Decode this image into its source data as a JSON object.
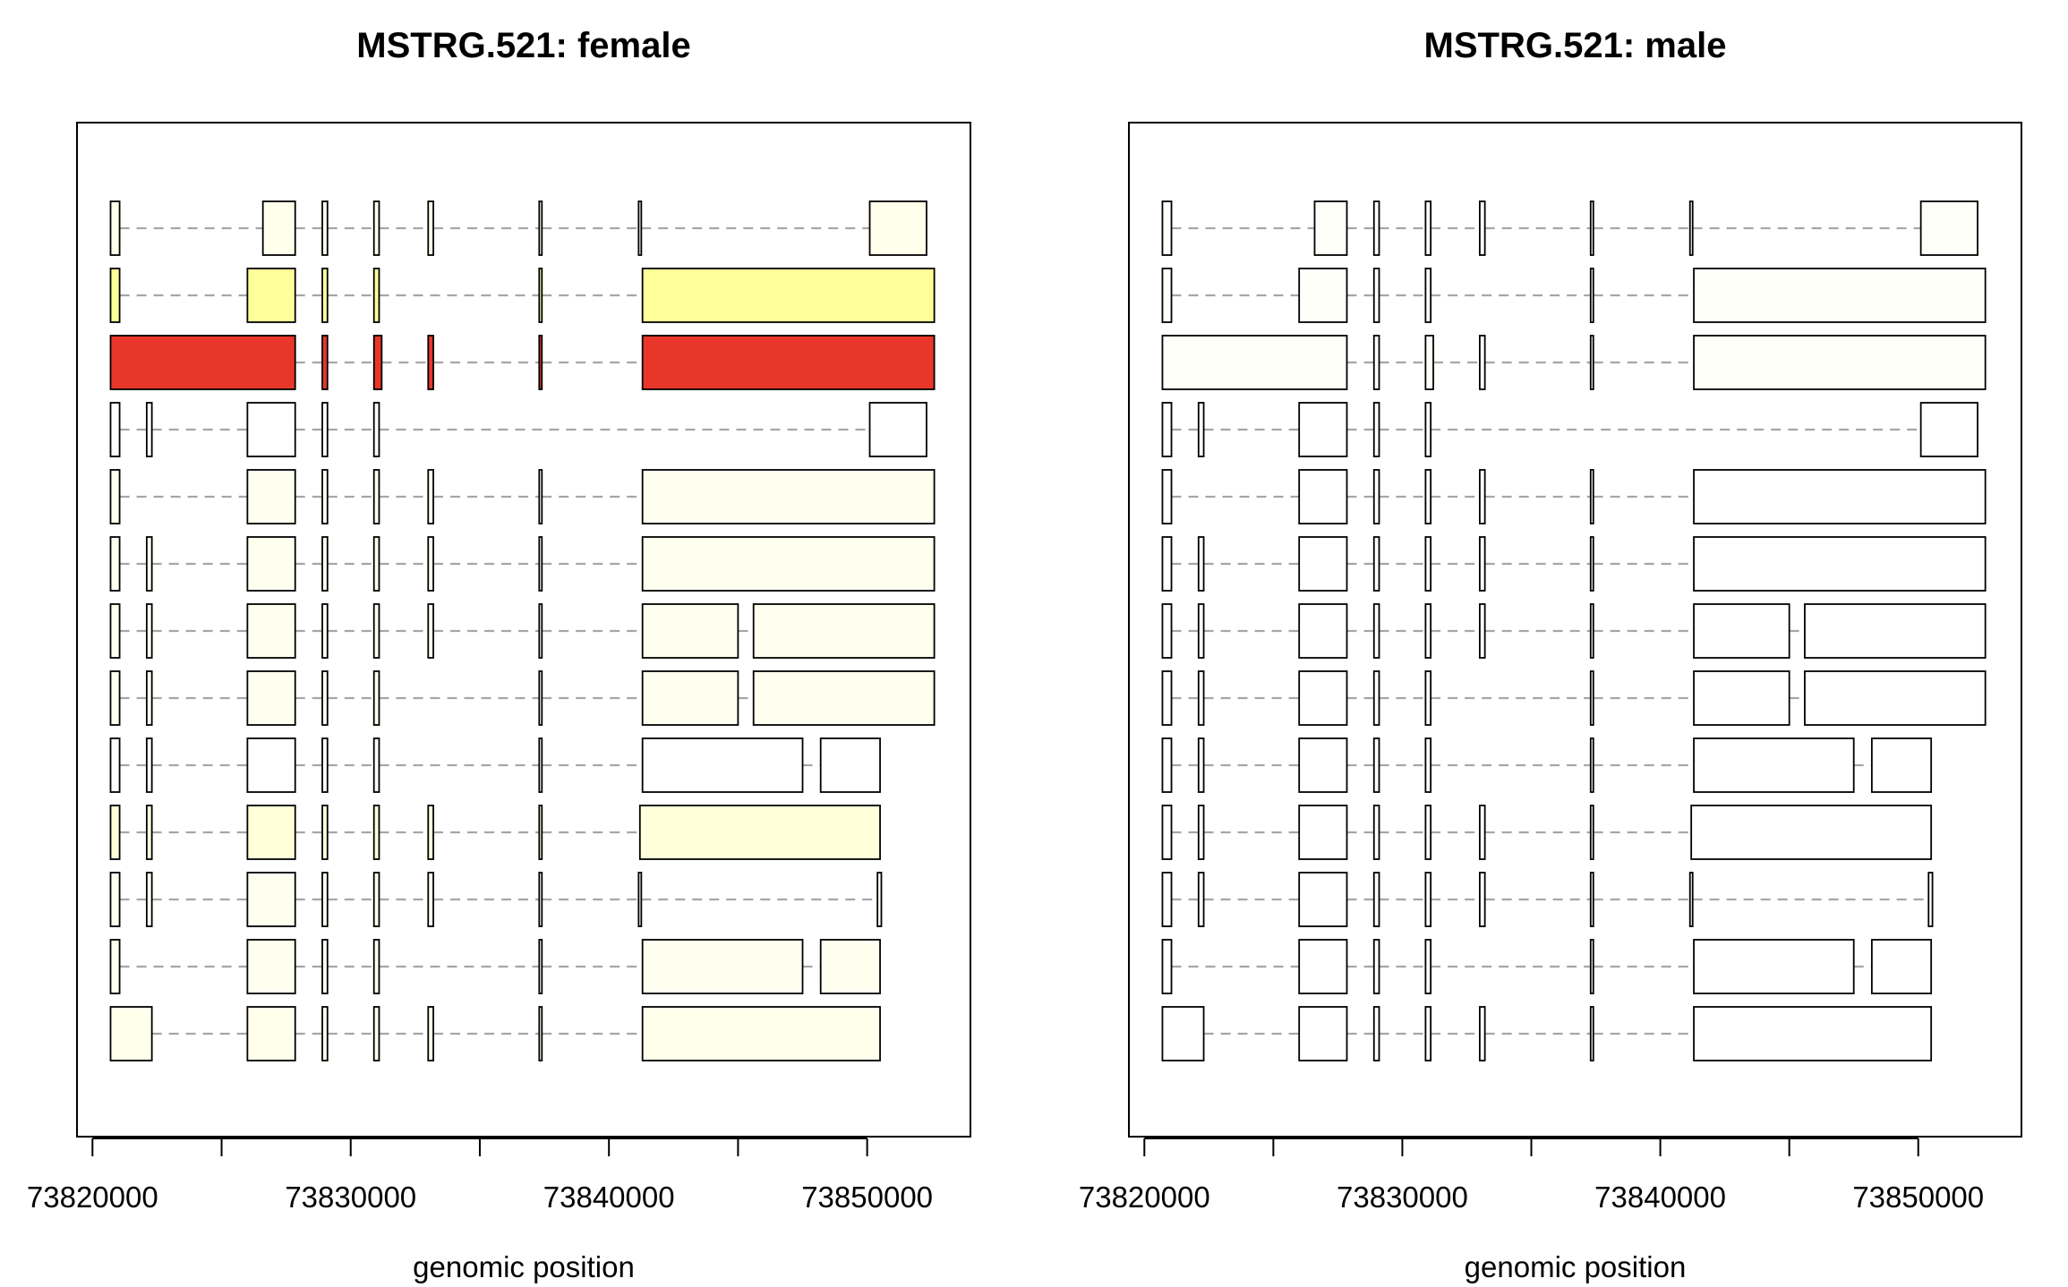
{
  "chart_data": [
    {
      "type": "transcript-structure",
      "title": "MSTRG.521: female",
      "xlabel": "genomic position",
      "ylabel": "",
      "xticks": [
        73820000,
        73825000,
        73830000,
        73835000,
        73840000,
        73845000,
        73850000
      ],
      "xtick_labels": [
        "73820000",
        "73830000",
        "73840000",
        "73850000"
      ],
      "xlim": [
        73819400,
        73854000
      ],
      "transcripts": [
        {
          "color": "#FFFFEB",
          "exons": [
            [
              73820700,
              73821050
            ],
            [
              73826600,
              73827850
            ],
            [
              73828900,
              73829100
            ],
            [
              73830900,
              73831100
            ],
            [
              73833000,
              73833200
            ],
            [
              73837300,
              73837400
            ],
            [
              73841150,
              73841250
            ],
            [
              73850100,
              73852300
            ]
          ]
        },
        {
          "color": "#FFFF99",
          "exons": [
            [
              73820700,
              73821050
            ],
            [
              73826000,
              73827850
            ],
            [
              73828900,
              73829100
            ],
            [
              73830900,
              73831100
            ],
            [
              73837300,
              73837400
            ],
            [
              73841300,
              73852600
            ]
          ]
        },
        {
          "color": "#E8372A",
          "exons": [
            [
              73820700,
              73827850
            ],
            [
              73828900,
              73829100
            ],
            [
              73830900,
              73831200
            ],
            [
              73833000,
              73833200
            ],
            [
              73837300,
              73837400
            ],
            [
              73841300,
              73852600
            ]
          ]
        },
        {
          "color": "#FFFFFF",
          "exons": [
            [
              73820700,
              73821050
            ],
            [
              73822100,
              73822300
            ],
            [
              73826000,
              73827850
            ],
            [
              73828900,
              73829100
            ],
            [
              73830900,
              73831100
            ],
            [
              73850100,
              73852300
            ]
          ]
        },
        {
          "color": "#FFFFF0",
          "exons": [
            [
              73820700,
              73821050
            ],
            [
              73826000,
              73827850
            ],
            [
              73828900,
              73829100
            ],
            [
              73830900,
              73831100
            ],
            [
              73833000,
              73833200
            ],
            [
              73837300,
              73837400
            ],
            [
              73841300,
              73852600
            ]
          ]
        },
        {
          "color": "#FFFFF0",
          "exons": [
            [
              73820700,
              73821050
            ],
            [
              73822100,
              73822300
            ],
            [
              73826000,
              73827850
            ],
            [
              73828900,
              73829100
            ],
            [
              73830900,
              73831100
            ],
            [
              73833000,
              73833200
            ],
            [
              73837300,
              73837400
            ],
            [
              73841300,
              73852600
            ]
          ]
        },
        {
          "color": "#FFFFF0",
          "exons": [
            [
              73820700,
              73821050
            ],
            [
              73822100,
              73822300
            ],
            [
              73826000,
              73827850
            ],
            [
              73828900,
              73829100
            ],
            [
              73830900,
              73831100
            ],
            [
              73833000,
              73833200
            ],
            [
              73837300,
              73837400
            ],
            [
              73841300,
              73845000
            ],
            [
              73845600,
              73852600
            ]
          ]
        },
        {
          "color": "#FFFFF0",
          "exons": [
            [
              73820700,
              73821050
            ],
            [
              73822100,
              73822300
            ],
            [
              73826000,
              73827850
            ],
            [
              73828900,
              73829100
            ],
            [
              73830900,
              73831100
            ],
            [
              73837300,
              73837400
            ],
            [
              73841300,
              73845000
            ],
            [
              73845600,
              73852600
            ]
          ]
        },
        {
          "color": "#FFFFFF",
          "exons": [
            [
              73820700,
              73821050
            ],
            [
              73822100,
              73822300
            ],
            [
              73826000,
              73827850
            ],
            [
              73828900,
              73829100
            ],
            [
              73830900,
              73831100
            ],
            [
              73837300,
              73837400
            ],
            [
              73841300,
              73847500
            ],
            [
              73848200,
              73850500
            ]
          ]
        },
        {
          "color": "#FFFFD9",
          "exons": [
            [
              73820700,
              73821050
            ],
            [
              73822100,
              73822300
            ],
            [
              73826000,
              73827850
            ],
            [
              73828900,
              73829100
            ],
            [
              73830900,
              73831100
            ],
            [
              73833000,
              73833200
            ],
            [
              73837300,
              73837400
            ],
            [
              73841200,
              73850500
            ]
          ]
        },
        {
          "color": "#FFFFF0",
          "exons": [
            [
              73820700,
              73821050
            ],
            [
              73822100,
              73822300
            ],
            [
              73826000,
              73827850
            ],
            [
              73828900,
              73829100
            ],
            [
              73830900,
              73831100
            ],
            [
              73833000,
              73833200
            ],
            [
              73837300,
              73837400
            ],
            [
              73841150,
              73841250
            ],
            [
              73850400,
              73850550
            ]
          ]
        },
        {
          "color": "#FFFFF0",
          "exons": [
            [
              73820700,
              73821050
            ],
            [
              73826000,
              73827850
            ],
            [
              73828900,
              73829100
            ],
            [
              73830900,
              73831100
            ],
            [
              73837300,
              73837400
            ],
            [
              73841300,
              73847500
            ],
            [
              73848200,
              73850500
            ]
          ]
        },
        {
          "color": "#FFFFEB",
          "exons": [
            [
              73820700,
              73822300
            ],
            [
              73826000,
              73827850
            ],
            [
              73828900,
              73829100
            ],
            [
              73830900,
              73831100
            ],
            [
              73833000,
              73833200
            ],
            [
              73837300,
              73837400
            ],
            [
              73841300,
              73850500
            ]
          ]
        }
      ]
    },
    {
      "type": "transcript-structure",
      "title": "MSTRG.521: male",
      "xlabel": "genomic position",
      "ylabel": "",
      "xticks": [
        73820000,
        73825000,
        73830000,
        73835000,
        73840000,
        73845000,
        73850000
      ],
      "xtick_labels": [
        "73820000",
        "73830000",
        "73840000",
        "73850000"
      ],
      "xlim": [
        73819400,
        73854000
      ],
      "transcripts": [
        {
          "color": "#FFFFFA",
          "exons": [
            [
              73820700,
              73821050
            ],
            [
              73826600,
              73827850
            ],
            [
              73828900,
              73829100
            ],
            [
              73830900,
              73831100
            ],
            [
              73833000,
              73833200
            ],
            [
              73837300,
              73837400
            ],
            [
              73841150,
              73841250
            ],
            [
              73850100,
              73852300
            ]
          ]
        },
        {
          "color": "#FFFFFA",
          "exons": [
            [
              73820700,
              73821050
            ],
            [
              73826000,
              73827850
            ],
            [
              73828900,
              73829100
            ],
            [
              73830900,
              73831100
            ],
            [
              73837300,
              73837400
            ],
            [
              73841300,
              73852600
            ]
          ]
        },
        {
          "color": "#FFFFFA",
          "exons": [
            [
              73820700,
              73827850
            ],
            [
              73828900,
              73829100
            ],
            [
              73830900,
              73831200
            ],
            [
              73833000,
              73833200
            ],
            [
              73837300,
              73837400
            ],
            [
              73841300,
              73852600
            ]
          ]
        },
        {
          "color": "#FFFFFF",
          "exons": [
            [
              73820700,
              73821050
            ],
            [
              73822100,
              73822300
            ],
            [
              73826000,
              73827850
            ],
            [
              73828900,
              73829100
            ],
            [
              73830900,
              73831100
            ],
            [
              73850100,
              73852300
            ]
          ]
        },
        {
          "color": "#FFFFFF",
          "exons": [
            [
              73820700,
              73821050
            ],
            [
              73826000,
              73827850
            ],
            [
              73828900,
              73829100
            ],
            [
              73830900,
              73831100
            ],
            [
              73833000,
              73833200
            ],
            [
              73837300,
              73837400
            ],
            [
              73841300,
              73852600
            ]
          ]
        },
        {
          "color": "#FFFFFF",
          "exons": [
            [
              73820700,
              73821050
            ],
            [
              73822100,
              73822300
            ],
            [
              73826000,
              73827850
            ],
            [
              73828900,
              73829100
            ],
            [
              73830900,
              73831100
            ],
            [
              73833000,
              73833200
            ],
            [
              73837300,
              73837400
            ],
            [
              73841300,
              73852600
            ]
          ]
        },
        {
          "color": "#FFFFFF",
          "exons": [
            [
              73820700,
              73821050
            ],
            [
              73822100,
              73822300
            ],
            [
              73826000,
              73827850
            ],
            [
              73828900,
              73829100
            ],
            [
              73830900,
              73831100
            ],
            [
              73833000,
              73833200
            ],
            [
              73837300,
              73837400
            ],
            [
              73841300,
              73845000
            ],
            [
              73845600,
              73852600
            ]
          ]
        },
        {
          "color": "#FFFFFF",
          "exons": [
            [
              73820700,
              73821050
            ],
            [
              73822100,
              73822300
            ],
            [
              73826000,
              73827850
            ],
            [
              73828900,
              73829100
            ],
            [
              73830900,
              73831100
            ],
            [
              73837300,
              73837400
            ],
            [
              73841300,
              73845000
            ],
            [
              73845600,
              73852600
            ]
          ]
        },
        {
          "color": "#FFFFFF",
          "exons": [
            [
              73820700,
              73821050
            ],
            [
              73822100,
              73822300
            ],
            [
              73826000,
              73827850
            ],
            [
              73828900,
              73829100
            ],
            [
              73830900,
              73831100
            ],
            [
              73837300,
              73837400
            ],
            [
              73841300,
              73847500
            ],
            [
              73848200,
              73850500
            ]
          ]
        },
        {
          "color": "#FFFFFF",
          "exons": [
            [
              73820700,
              73821050
            ],
            [
              73822100,
              73822300
            ],
            [
              73826000,
              73827850
            ],
            [
              73828900,
              73829100
            ],
            [
              73830900,
              73831100
            ],
            [
              73833000,
              73833200
            ],
            [
              73837300,
              73837400
            ],
            [
              73841200,
              73850500
            ]
          ]
        },
        {
          "color": "#FFFFFF",
          "exons": [
            [
              73820700,
              73821050
            ],
            [
              73822100,
              73822300
            ],
            [
              73826000,
              73827850
            ],
            [
              73828900,
              73829100
            ],
            [
              73830900,
              73831100
            ],
            [
              73833000,
              73833200
            ],
            [
              73837300,
              73837400
            ],
            [
              73841150,
              73841250
            ],
            [
              73850400,
              73850550
            ]
          ]
        },
        {
          "color": "#FFFFFF",
          "exons": [
            [
              73820700,
              73821050
            ],
            [
              73826000,
              73827850
            ],
            [
              73828900,
              73829100
            ],
            [
              73830900,
              73831100
            ],
            [
              73837300,
              73837400
            ],
            [
              73841300,
              73847500
            ],
            [
              73848200,
              73850500
            ]
          ]
        },
        {
          "color": "#FFFFFF",
          "exons": [
            [
              73820700,
              73822300
            ],
            [
              73826000,
              73827850
            ],
            [
              73828900,
              73829100
            ],
            [
              73830900,
              73831100
            ],
            [
              73833000,
              73833200
            ],
            [
              73837300,
              73837400
            ],
            [
              73841300,
              73850500
            ]
          ]
        }
      ]
    }
  ]
}
